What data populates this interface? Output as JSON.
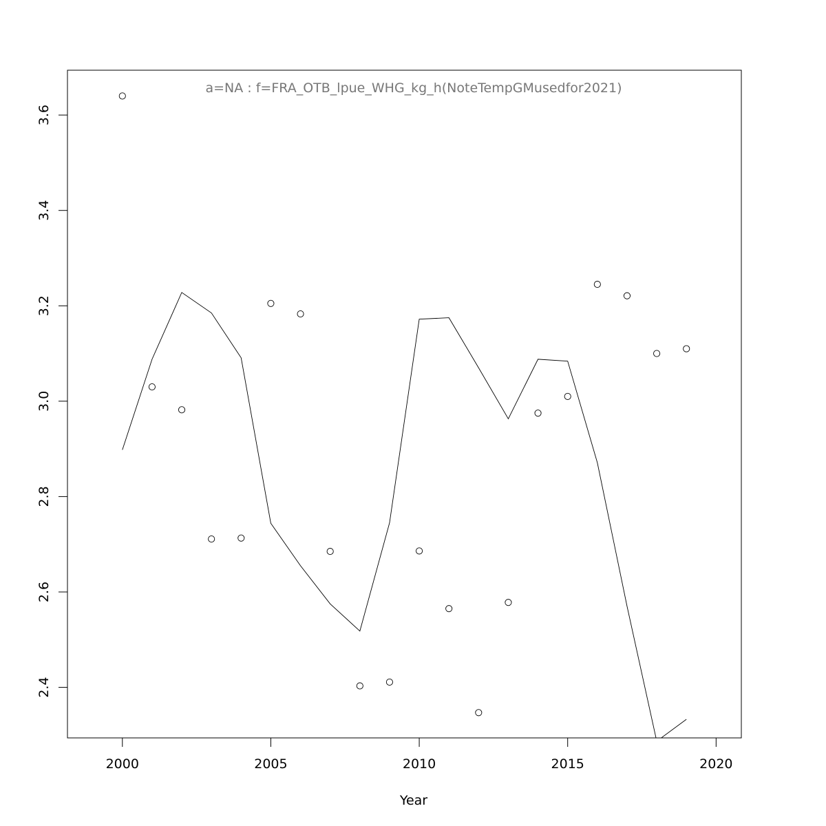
{
  "chart_data": {
    "type": "scatter",
    "title": "a=NA  :  f=FRA_OTB_lpue_WHG_kg_h(NoteTempGMusedfor2021)",
    "xlabel": "Year",
    "ylabel": "",
    "xlim": [
      1998.15,
      2020.85
    ],
    "ylim": [
      2.294,
      3.694
    ],
    "x_ticks": [
      2000,
      2005,
      2010,
      2015,
      2020
    ],
    "x_tick_labels": [
      "2000",
      "2005",
      "2010",
      "2015",
      "2020"
    ],
    "y_ticks": [
      2.4,
      2.6,
      2.8,
      3.0,
      3.2,
      3.4,
      3.6
    ],
    "y_tick_labels": [
      "2.4",
      "2.6",
      "2.8",
      "3.0",
      "3.2",
      "3.4",
      "3.6"
    ],
    "grid": false,
    "points": {
      "x": [
        2000,
        2001,
        2002,
        2003,
        2004,
        2005,
        2006,
        2007,
        2008,
        2009,
        2010,
        2011,
        2012,
        2013,
        2014,
        2015,
        2016,
        2017,
        2018,
        2019
      ],
      "y": [
        3.64,
        3.03,
        2.982,
        2.711,
        2.713,
        3.205,
        3.183,
        2.685,
        2.403,
        2.411,
        2.686,
        2.565,
        2.347,
        2.578,
        2.975,
        3.01,
        3.245,
        3.221,
        3.1,
        3.11
      ]
    },
    "line": {
      "x": [
        2000,
        2001,
        2002,
        2003,
        2004,
        2005,
        2006,
        2007,
        2008,
        2009,
        2010,
        2011,
        2012,
        2013,
        2014,
        2015,
        2016,
        2017,
        2018,
        2019
      ],
      "y": [
        2.898,
        3.088,
        3.228,
        3.185,
        3.091,
        2.744,
        2.655,
        2.575,
        2.518,
        2.745,
        3.172,
        3.175,
        3.07,
        2.963,
        3.088,
        3.084,
        2.871,
        2.57,
        2.287,
        2.333
      ]
    }
  }
}
